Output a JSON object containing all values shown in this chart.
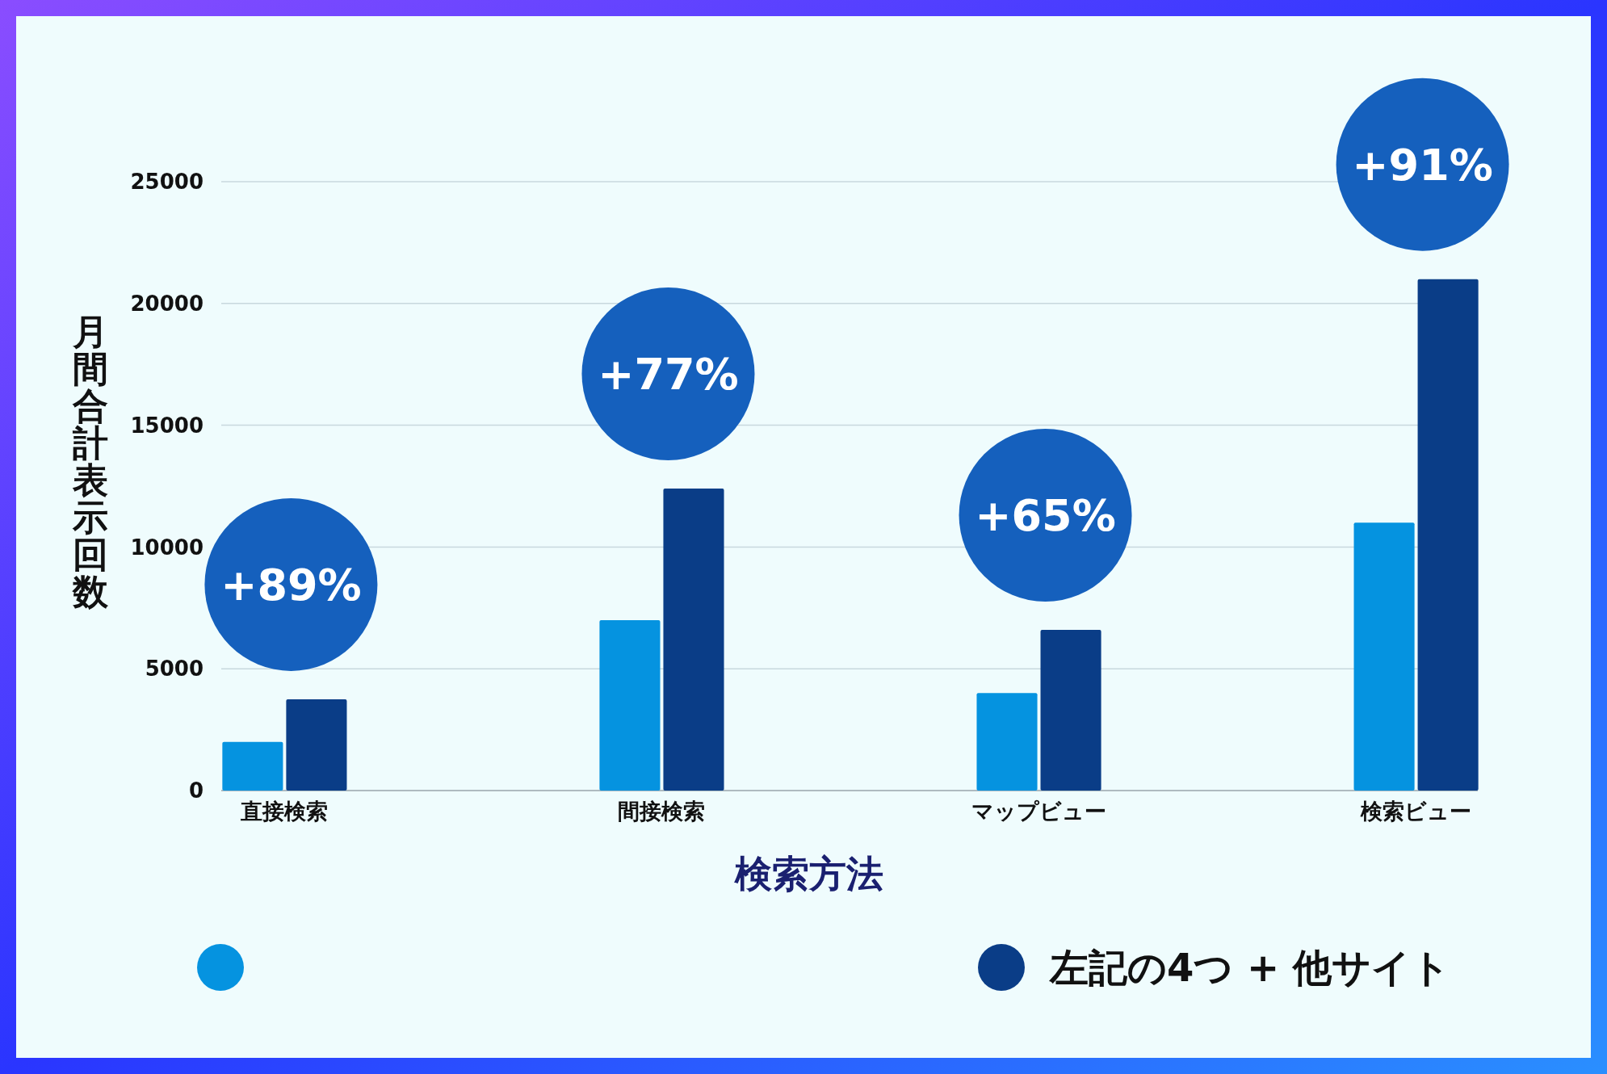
{
  "chart_data": {
    "type": "bar",
    "xlabel": "検索方法",
    "ylabel": "月間合計表示回数",
    "categories": [
      "直接検索",
      "間接検索",
      "マップビュー",
      "検索ビュー"
    ],
    "series": [
      {
        "color": "#0593e0",
        "values": [
          2000,
          7000,
          4000,
          11000
        ]
      },
      {
        "name": "左記の4つ + 他サイト",
        "color": "#0a3d87",
        "values": [
          3750,
          12400,
          6600,
          21000
        ]
      }
    ],
    "ylim": [
      0,
      25000
    ],
    "yticks": [
      0,
      5000,
      10000,
      15000,
      20000,
      25000
    ],
    "grid": "y",
    "legend": "bottom",
    "annotations": [
      "+89%",
      "+77%",
      "+65%",
      "+91%"
    ]
  }
}
